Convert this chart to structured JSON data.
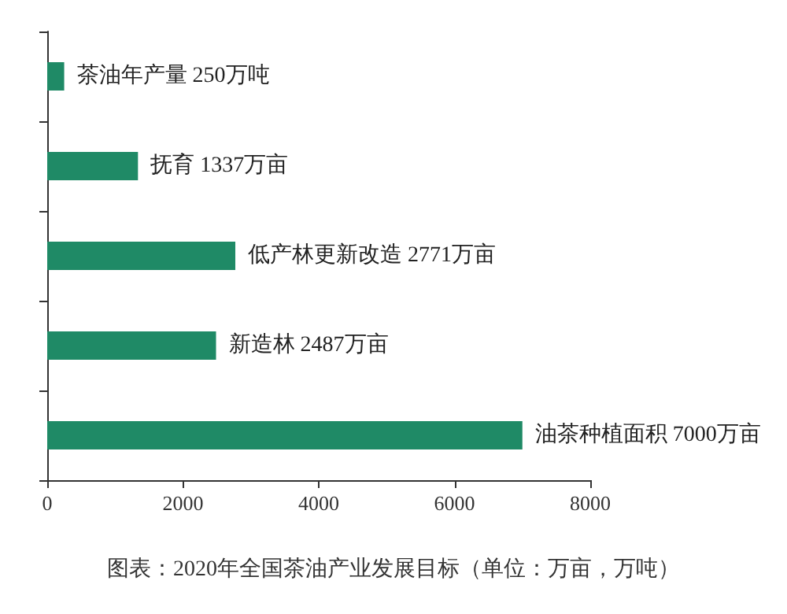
{
  "chart_data": {
    "type": "bar",
    "orientation": "horizontal",
    "categories": [
      null,
      null,
      null,
      null,
      null
    ],
    "values": [
      250,
      1337,
      2771,
      2487,
      7000
    ],
    "value_labels": [
      "茶油年产量 250万吨",
      "抚育 1337万亩",
      "低产林更新改造 2771万亩",
      "新造林 2487万亩",
      "油茶种植面积 7000万亩"
    ],
    "color": "#1f8a66",
    "xlim": [
      0,
      8000
    ],
    "xticks": [
      0,
      2000,
      4000,
      6000,
      8000
    ],
    "grid": false,
    "annotations": [
      "图表：2020年全国茶油产业发展目标（单位：万亩，万吨）"
    ]
  }
}
